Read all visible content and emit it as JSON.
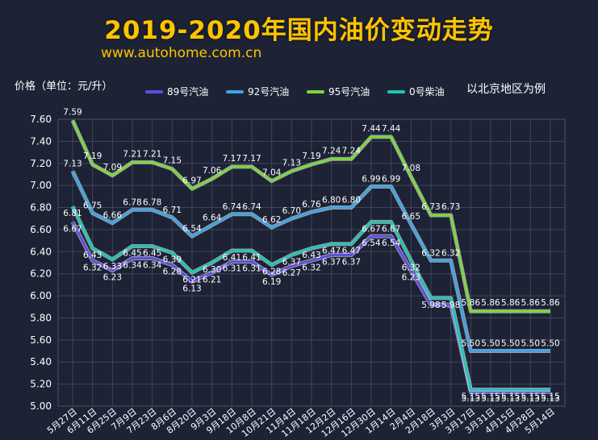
{
  "header": {
    "title": "2019-2020年国内油价变动走势",
    "website": "www.autohome.com.cn",
    "note": "以北京地区为例"
  },
  "chart_data": {
    "type": "line",
    "ylabel": "价格（单位：元/升）",
    "ylim": [
      5.0,
      7.6
    ],
    "ytick_step": 0.2,
    "yticks": [
      "5.00",
      "5.20",
      "5.40",
      "5.60",
      "5.80",
      "6.00",
      "6.20",
      "6.40",
      "6.60",
      "6.80",
      "7.00",
      "7.20",
      "7.40",
      "7.60"
    ],
    "grid": true,
    "legend_position": "top",
    "categories": [
      "5月27日",
      "6月11日",
      "6月25日",
      "7月9日",
      "7月23日",
      "8月6日",
      "8月20日",
      "9月3日",
      "9月18日",
      "10月8日",
      "10月21日",
      "11月4日",
      "11月18日",
      "12月2日",
      "12月16日",
      "12月30日",
      "1月14日",
      "2月4日",
      "2月18日",
      "3月3日",
      "3月17日",
      "3月31日",
      "4月15日",
      "4月28日",
      "5月14日"
    ],
    "series": [
      {
        "name": "89号汽油",
        "color": "#5b4fe0",
        "values": [
          6.67,
          6.32,
          6.23,
          6.34,
          6.34,
          6.28,
          6.13,
          6.21,
          6.31,
          6.31,
          6.19,
          6.27,
          6.32,
          6.37,
          6.37,
          6.54,
          6.54,
          6.23,
          5.92,
          5.92,
          5.13,
          5.13,
          5.13,
          5.13,
          5.13
        ],
        "labels": [
          "6.67",
          "6.32",
          "6.23",
          "6.34",
          "6.34",
          "6.28",
          "6.13",
          "6.21",
          "6.31",
          "6.31",
          "6.19",
          "6.27",
          "6.32",
          "6.37",
          "6.37",
          "6.54",
          "6.54",
          "6.23",
          "",
          "",
          "5.13",
          "5.13",
          "5.13",
          "5.13",
          "5.13"
        ]
      },
      {
        "name": "92号汽油",
        "color": "#3ea3e6",
        "values": [
          7.13,
          6.75,
          6.66,
          6.78,
          6.78,
          6.71,
          6.54,
          6.64,
          6.74,
          6.74,
          6.62,
          6.7,
          6.76,
          6.8,
          6.8,
          6.99,
          6.99,
          6.65,
          6.32,
          6.32,
          5.5,
          5.5,
          5.5,
          5.5,
          5.5
        ],
        "labels": [
          "7.13",
          "6.75",
          "6.66",
          "6.78",
          "6.78",
          "6.71",
          "6.54",
          "6.64",
          "6.74",
          "6.74",
          "6.62",
          "6.70",
          "6.76",
          "6.80",
          "6.80",
          "6.99",
          "6.99",
          "6.65",
          "6.32",
          "6.32",
          "5.50",
          "5.50",
          "5.50",
          "5.50",
          "5.50"
        ]
      },
      {
        "name": "95号汽油",
        "color": "#7ed63b",
        "values": [
          7.59,
          7.19,
          7.09,
          7.21,
          7.21,
          7.15,
          6.97,
          7.06,
          7.17,
          7.17,
          7.04,
          7.13,
          7.19,
          7.24,
          7.24,
          7.44,
          7.44,
          7.08,
          6.73,
          6.73,
          5.86,
          5.86,
          5.86,
          5.86,
          5.86
        ],
        "labels": [
          "7.59",
          "7.19",
          "7.09",
          "7.21",
          "7.21",
          "7.15",
          "6.97",
          "7.06",
          "7.17",
          "7.17",
          "7.04",
          "7.13",
          "7.19",
          "7.24",
          "7.24",
          "7.44",
          "7.44",
          "7.08",
          "6.73",
          "6.73",
          "5.86",
          "5.86",
          "5.86",
          "5.86",
          "5.86"
        ]
      },
      {
        "name": "0号柴油",
        "color": "#1fc5b3",
        "values": [
          6.81,
          6.43,
          6.33,
          6.45,
          6.45,
          6.39,
          6.21,
          6.3,
          6.41,
          6.41,
          6.28,
          6.37,
          6.43,
          6.47,
          6.47,
          6.67,
          6.67,
          6.32,
          5.98,
          5.98,
          5.15,
          5.15,
          5.15,
          5.15,
          5.15
        ],
        "labels": [
          "6.81",
          "6.43",
          "6.33",
          "6.45",
          "6.45",
          "6.39",
          "6.21",
          "6.30",
          "6.41",
          "6.41",
          "6.28",
          "6.37",
          "6.43",
          "6.47",
          "6.47",
          "6.67",
          "6.67",
          "6.32",
          "5.98",
          "5.98",
          "5.15",
          "5.15",
          "5.15",
          "5.15",
          "5.15"
        ]
      }
    ]
  }
}
